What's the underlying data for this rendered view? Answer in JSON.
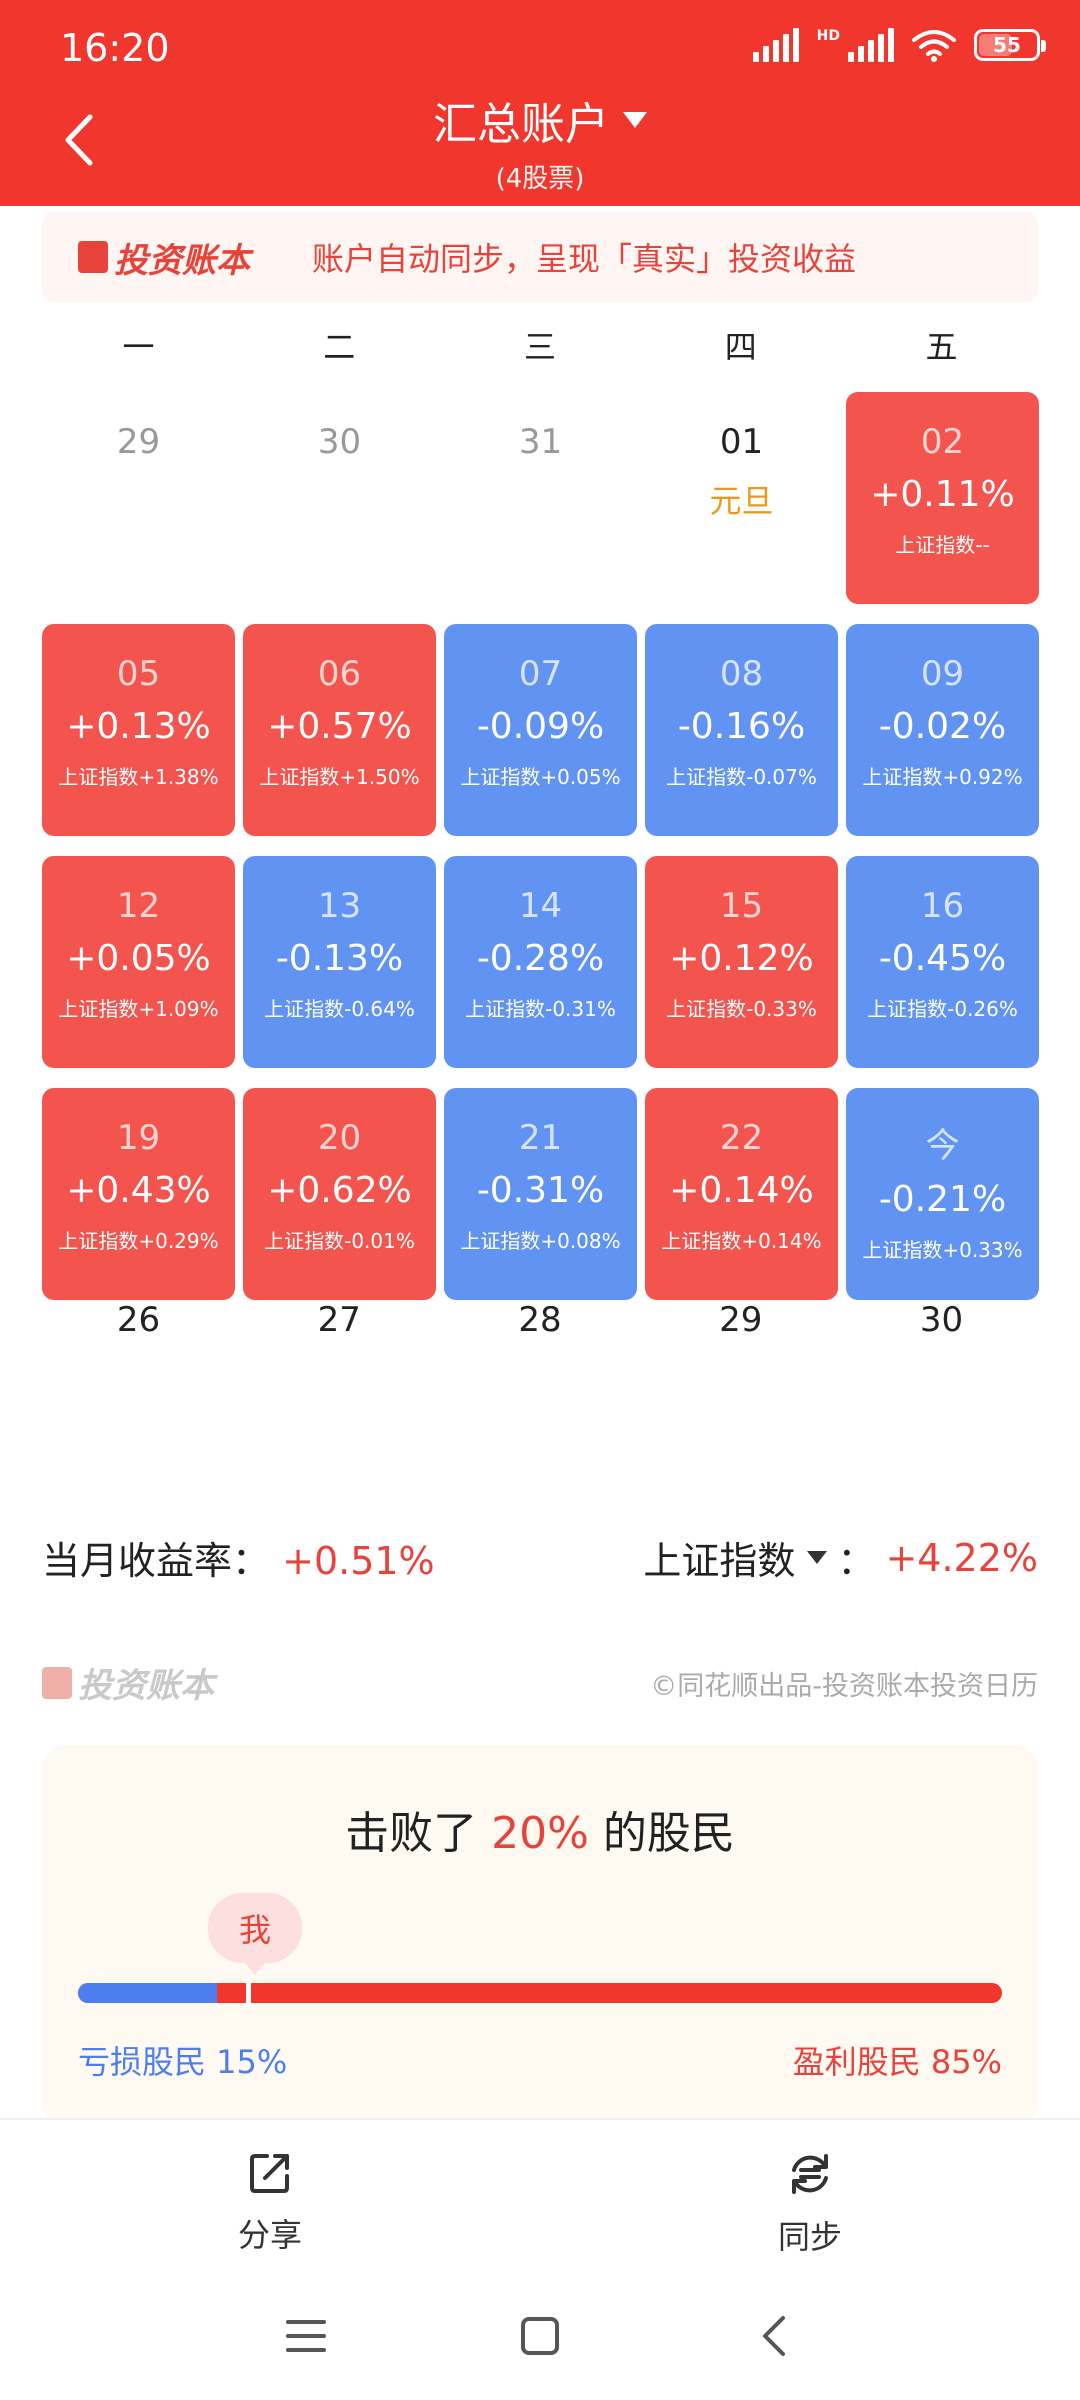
{
  "status": {
    "time": "16:20",
    "network_label": "HD",
    "battery": "55"
  },
  "colors": {
    "header_red": "#f1362d",
    "gain_red": "#f3544d",
    "loss_blue": "#6193f2",
    "holiday_orange": "#e89b1a"
  },
  "header": {
    "title": "汇总账户",
    "subtitle": "(4股票)"
  },
  "banner": {
    "brand": "投资账本",
    "text": "账户自动同步，呈现「真实」投资收益"
  },
  "weekdays": [
    "一",
    "二",
    "三",
    "四",
    "五"
  ],
  "calendar": [
    {
      "day": "29",
      "type": "plain"
    },
    {
      "day": "30",
      "type": "plain"
    },
    {
      "day": "31",
      "type": "plain"
    },
    {
      "day": "01",
      "type": "holiday",
      "holiday": "元旦"
    },
    {
      "day": "02",
      "type": "up",
      "pct": "+0.11%",
      "index": "上证指数--"
    },
    {
      "day": "05",
      "type": "up",
      "pct": "+0.13%",
      "index": "上证指数+1.38%"
    },
    {
      "day": "06",
      "type": "up",
      "pct": "+0.57%",
      "index": "上证指数+1.50%"
    },
    {
      "day": "07",
      "type": "down",
      "pct": "-0.09%",
      "index": "上证指数+0.05%"
    },
    {
      "day": "08",
      "type": "down",
      "pct": "-0.16%",
      "index": "上证指数-0.07%"
    },
    {
      "day": "09",
      "type": "down",
      "pct": "-0.02%",
      "index": "上证指数+0.92%"
    },
    {
      "day": "12",
      "type": "up",
      "pct": "+0.05%",
      "index": "上证指数+1.09%"
    },
    {
      "day": "13",
      "type": "down",
      "pct": "-0.13%",
      "index": "上证指数-0.64%"
    },
    {
      "day": "14",
      "type": "down",
      "pct": "-0.28%",
      "index": "上证指数-0.31%"
    },
    {
      "day": "15",
      "type": "up",
      "pct": "+0.12%",
      "index": "上证指数-0.33%"
    },
    {
      "day": "16",
      "type": "down",
      "pct": "-0.45%",
      "index": "上证指数-0.26%"
    },
    {
      "day": "19",
      "type": "up",
      "pct": "+0.43%",
      "index": "上证指数+0.29%"
    },
    {
      "day": "20",
      "type": "up",
      "pct": "+0.62%",
      "index": "上证指数-0.01%"
    },
    {
      "day": "21",
      "type": "down",
      "pct": "-0.31%",
      "index": "上证指数+0.08%"
    },
    {
      "day": "22",
      "type": "up",
      "pct": "+0.14%",
      "index": "上证指数+0.14%"
    },
    {
      "day": "今",
      "type": "down",
      "pct": "-0.21%",
      "index": "上证指数+0.33%"
    }
  ],
  "next_week": [
    "26",
    "27",
    "28",
    "29",
    "30"
  ],
  "summary": {
    "month_label": "当月收益率：",
    "month_value": "+0.51%",
    "index_label": "上证指数",
    "index_sep": "：",
    "index_value": "+4.22%"
  },
  "footer_brand": {
    "brand": "投资账本",
    "copyright": "©同花顺出品-投资账本投资日历"
  },
  "beat": {
    "prefix": "击败了",
    "percent": "20%",
    "suffix": "的股民",
    "me_label": "我",
    "loss_label": "亏损股民 15%",
    "gain_label": "盈利股民 85%",
    "loss_fraction": 0.15
  },
  "actions": {
    "share": "分享",
    "sync": "同步"
  },
  "icons": [
    "back-icon",
    "dropdown-icon",
    "share-icon",
    "sync-icon",
    "menu-icon",
    "home-icon",
    "nav-back-icon",
    "wifi-icon",
    "signal-icon",
    "battery-icon"
  ]
}
